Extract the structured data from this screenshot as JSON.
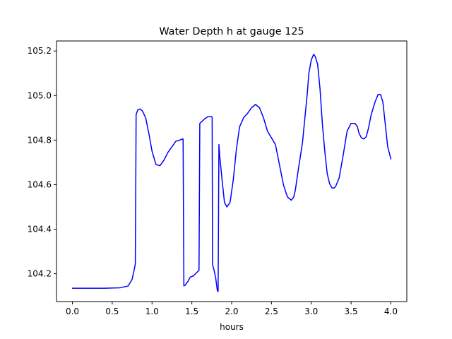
{
  "chart_data": {
    "type": "line",
    "title": "Water Depth h at gauge 125",
    "xlabel": "hours",
    "ylabel": "",
    "xlim": [
      -0.2,
      4.2
    ],
    "ylim": [
      104.075,
      105.245
    ],
    "x_ticks": [
      0.0,
      0.5,
      1.0,
      1.5,
      2.0,
      2.5,
      3.0,
      3.5,
      4.0
    ],
    "x_tick_labels": [
      "0.0",
      "0.5",
      "1.0",
      "1.5",
      "2.0",
      "2.5",
      "3.0",
      "3.5",
      "4.0"
    ],
    "y_ticks": [
      104.2,
      104.4,
      104.6,
      104.8,
      105.0,
      105.2
    ],
    "y_tick_labels": [
      "104.2",
      "104.4",
      "104.6",
      "104.8",
      "105.0",
      "105.2"
    ],
    "grid": false,
    "legend": "none",
    "series": [
      {
        "color": "#0000ff",
        "x": [
          0.0,
          0.2,
          0.4,
          0.6,
          0.7,
          0.75,
          0.78,
          0.79,
          0.795,
          0.8,
          0.82,
          0.85,
          0.88,
          0.92,
          0.96,
          1.0,
          1.05,
          1.1,
          1.15,
          1.2,
          1.25,
          1.3,
          1.35,
          1.38,
          1.39,
          1.4,
          1.42,
          1.45,
          1.48,
          1.52,
          1.56,
          1.59,
          1.595,
          1.6,
          1.63,
          1.66,
          1.7,
          1.75,
          1.755,
          1.76,
          1.78,
          1.8,
          1.82,
          1.83,
          1.84,
          1.85,
          1.88,
          1.91,
          1.94,
          1.98,
          2.02,
          2.06,
          2.1,
          2.15,
          2.2,
          2.25,
          2.3,
          2.35,
          2.4,
          2.45,
          2.5,
          2.55,
          2.6,
          2.65,
          2.7,
          2.75,
          2.78,
          2.8,
          2.83,
          2.86,
          2.89,
          2.92,
          2.95,
          2.97,
          3.0,
          3.03,
          3.05,
          3.08,
          3.11,
          3.14,
          3.17,
          3.2,
          3.23,
          3.26,
          3.29,
          3.31,
          3.35,
          3.4,
          3.45,
          3.5,
          3.55,
          3.58,
          3.6,
          3.63,
          3.66,
          3.69,
          3.72,
          3.75,
          3.8,
          3.84,
          3.87,
          3.9,
          3.93,
          3.96,
          4.0
        ],
        "y": [
          104.135,
          104.135,
          104.135,
          104.137,
          104.145,
          104.175,
          104.225,
          104.245,
          104.55,
          104.915,
          104.935,
          104.94,
          104.93,
          104.9,
          104.83,
          104.75,
          104.69,
          104.685,
          104.71,
          104.745,
          104.77,
          104.795,
          104.8,
          104.805,
          104.805,
          104.145,
          104.15,
          104.165,
          104.185,
          104.19,
          104.205,
          104.215,
          104.55,
          104.875,
          104.885,
          104.895,
          104.905,
          104.905,
          104.9,
          104.24,
          104.215,
          104.18,
          104.125,
          104.12,
          104.78,
          104.73,
          104.62,
          104.52,
          104.5,
          104.52,
          104.62,
          104.76,
          104.86,
          104.9,
          104.92,
          104.945,
          104.96,
          104.945,
          104.9,
          104.84,
          104.81,
          104.78,
          104.69,
          104.6,
          104.545,
          104.53,
          104.545,
          104.575,
          104.65,
          104.72,
          104.79,
          104.9,
          105.01,
          105.1,
          105.16,
          105.185,
          105.175,
          105.14,
          105.03,
          104.87,
          104.75,
          104.65,
          104.605,
          104.585,
          104.585,
          104.595,
          104.63,
          104.73,
          104.84,
          104.875,
          104.875,
          104.86,
          104.83,
          104.81,
          104.805,
          104.815,
          104.855,
          104.91,
          104.97,
          105.005,
          105.005,
          104.97,
          104.87,
          104.77,
          104.715
        ]
      }
    ]
  }
}
